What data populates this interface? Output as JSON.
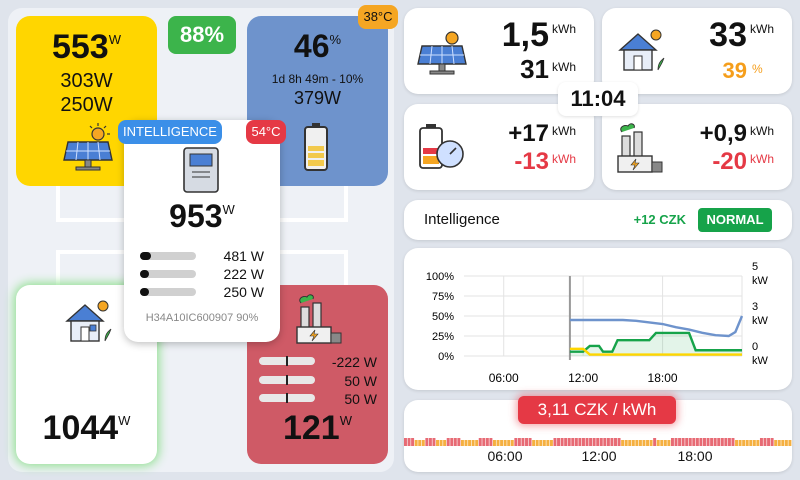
{
  "solar": {
    "power": "553",
    "unit": "W",
    "string1": "303W",
    "string2": "250W"
  },
  "self_sufficiency": "88%",
  "battery": {
    "soc": "46",
    "soc_unit": "%",
    "temp": "38°C",
    "time_remaining": "1d 8h 49m - 10%",
    "power": "379W"
  },
  "inverter": {
    "badge": "INTELLIGENCE",
    "temp": "54°C",
    "power": "953",
    "unit": "W",
    "model": "H34A10IC600907 90%",
    "phases": [
      {
        "value": "481 W",
        "level": 0.16
      },
      {
        "value": "222 W",
        "level": 0.07
      },
      {
        "value": "250 W",
        "level": 0.08
      }
    ]
  },
  "home": {
    "power": "1044",
    "unit": "W"
  },
  "grid": {
    "power": "121",
    "unit": "W",
    "phases": [
      "-222 W",
      "50 W",
      "50 W"
    ]
  },
  "stats": {
    "solar_today": "1,5",
    "solar_today_unit": "kWh",
    "solar_sub": "31",
    "solar_sub_unit": "kWh",
    "home_today": "33",
    "home_today_unit": "kWh",
    "home_pct": "39",
    "home_pct_unit": "%",
    "batt_charge": "+17",
    "batt_charge_unit": "kWh",
    "batt_discharge": "-13",
    "batt_discharge_unit": "kWh",
    "grid_import": "+0,9",
    "grid_import_unit": "kWh",
    "grid_export": "-20",
    "grid_export_unit": "kWh"
  },
  "clock": "11:04",
  "intelligence": {
    "label": "Intelligence",
    "savings": "+12 CZK",
    "mode": "NORMAL"
  },
  "price": {
    "label": "3,11 CZK / kWh",
    "ticks": [
      "06:00",
      "12:00",
      "18:00"
    ]
  },
  "colors": {
    "solar": "#ffd600",
    "battery": "#6e93cc",
    "grid": "#cf5a66",
    "green": "#16a34a",
    "orange": "#f59e1b",
    "red": "#e53945"
  },
  "chart_data": {
    "type": "line",
    "x_ticks": [
      "06:00",
      "12:00",
      "18:00"
    ],
    "y_left_ticks": [
      "100%",
      "75%",
      "50%",
      "25%",
      "0%"
    ],
    "y_right_ticks": [
      {
        "v": "5",
        "u": "kW"
      },
      {
        "v": "3",
        "u": "kW"
      },
      {
        "v": "0",
        "u": "kW"
      }
    ],
    "series": [
      {
        "color": "#6e93cc",
        "axis": "left",
        "points": [
          [
            11,
            45
          ],
          [
            12,
            45
          ],
          [
            13,
            45
          ],
          [
            14,
            45
          ],
          [
            15,
            45
          ],
          [
            16,
            44
          ],
          [
            17,
            42
          ],
          [
            18,
            40
          ],
          [
            19,
            36
          ],
          [
            20,
            33
          ],
          [
            21,
            29
          ],
          [
            22,
            26
          ],
          [
            23,
            25
          ],
          [
            23.5,
            30
          ],
          [
            24,
            50
          ]
        ]
      },
      {
        "color": "#16a34a",
        "axis": "right",
        "points": [
          [
            11,
            0.3
          ],
          [
            12,
            0.3
          ],
          [
            12.5,
            0.7
          ],
          [
            13.2,
            0.7
          ],
          [
            13.5,
            0.3
          ],
          [
            14.2,
            0.3
          ],
          [
            14.6,
            1.1
          ],
          [
            17,
            1.1
          ],
          [
            17.5,
            1.6
          ],
          [
            20,
            1.6
          ],
          [
            20.5,
            0.4
          ],
          [
            24,
            0.4
          ]
        ]
      },
      {
        "color": "#ffd600",
        "axis": "right",
        "points": [
          [
            11,
            0.5
          ],
          [
            12,
            0.5
          ],
          [
            12.5,
            0.1
          ],
          [
            24,
            0.1
          ]
        ]
      }
    ]
  }
}
